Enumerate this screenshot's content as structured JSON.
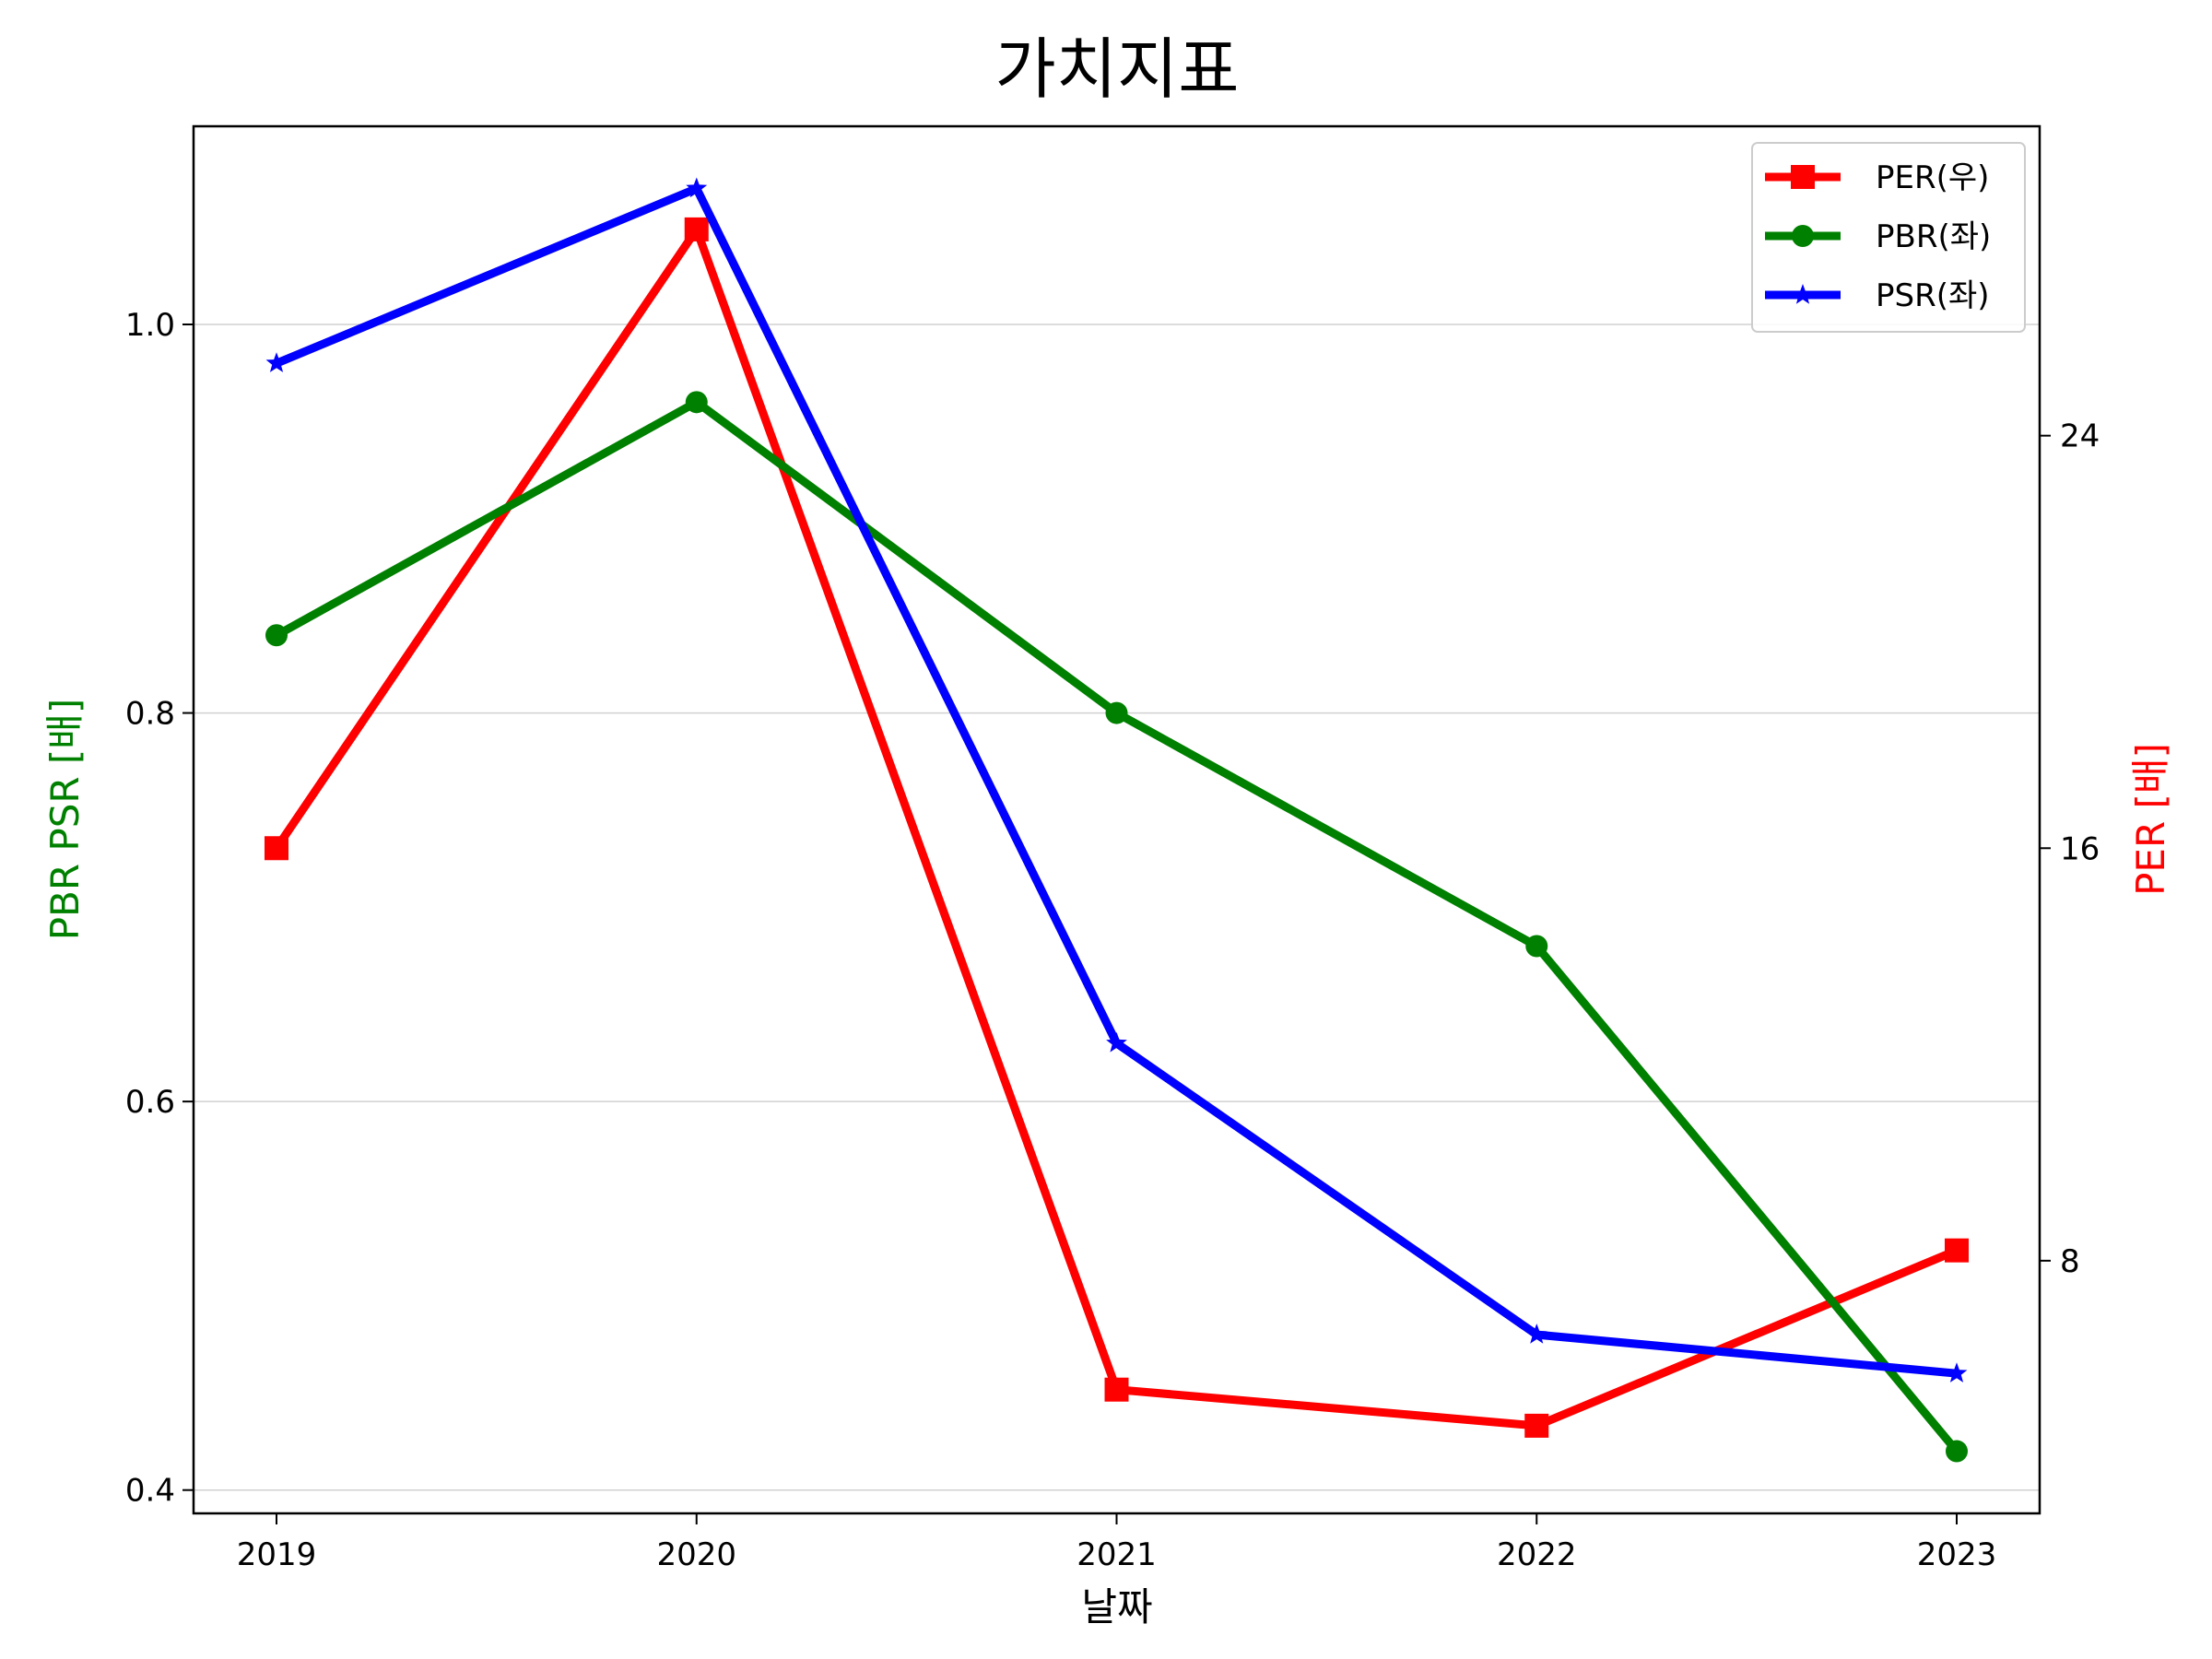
{
  "chart_data": {
    "type": "line",
    "title": "가치지표",
    "xlabel": "날짜",
    "ylabel_left": "PBR PSR [배]",
    "ylabel_right": "PER [배]",
    "x": [
      "2019",
      "2020",
      "2021",
      "2022",
      "2023"
    ],
    "y_left_ticks": [
      "0.4",
      "0.6",
      "0.8",
      "1.0"
    ],
    "y_right_ticks": [
      "8",
      "16",
      "24"
    ],
    "ylim_left": [
      0.388,
      1.102
    ],
    "ylim_right": [
      3.1,
      30.0
    ],
    "grid": "horizontal-left",
    "legend_position": "top-right",
    "series": [
      {
        "name": "PER(우)",
        "axis": "right",
        "color": "#ff0000",
        "marker": "square",
        "values": [
          16.0,
          28.0,
          5.5,
          4.8,
          8.2
        ]
      },
      {
        "name": "PBR(좌)",
        "axis": "left",
        "color": "#008000",
        "marker": "circle",
        "values": [
          0.84,
          0.96,
          0.8,
          0.68,
          0.42
        ]
      },
      {
        "name": "PSR(좌)",
        "axis": "left",
        "color": "#0000ff",
        "marker": "star",
        "values": [
          0.98,
          1.07,
          0.63,
          0.48,
          0.46
        ]
      }
    ]
  },
  "colors": {
    "left_axis_label": "#008000",
    "right_axis_label": "#ff0000",
    "grid": "#d0d0d0"
  }
}
